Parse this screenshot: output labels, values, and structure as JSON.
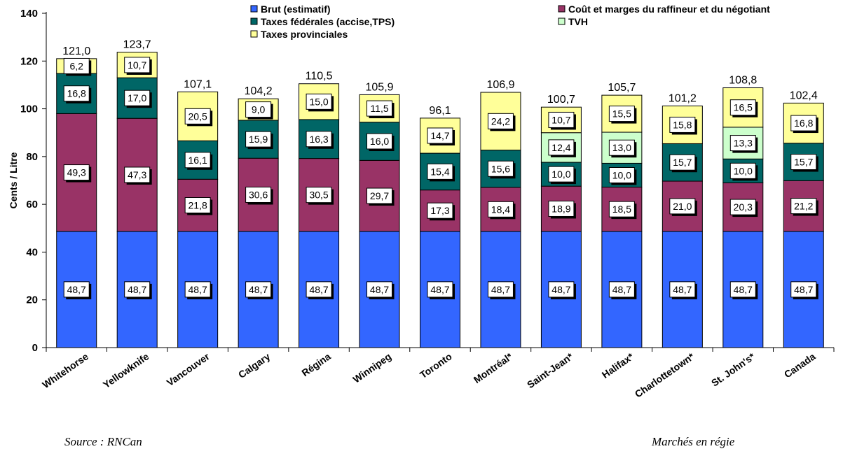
{
  "chart_data": {
    "type": "bar",
    "stacked": true,
    "ylabel": "Cents / Litre",
    "ylim": [
      0,
      140
    ],
    "yticks": [
      0,
      20,
      40,
      60,
      80,
      100,
      120,
      140
    ],
    "grid": false,
    "legend_position": "top",
    "categories": [
      "Whitehorse",
      "Yellowknife",
      "Vancouver",
      "Calgary",
      "Régina",
      "Winnipeg",
      "Toronto",
      "Montréal*",
      "Saint-Jean*",
      "Halifax*",
      "Charlottetown*",
      "St. John's*",
      "Canada"
    ],
    "series": [
      {
        "name": "Brut (estimatif)",
        "color": "#3366ff",
        "values": [
          48.7,
          48.7,
          48.7,
          48.7,
          48.7,
          48.7,
          48.7,
          48.7,
          48.7,
          48.7,
          48.7,
          48.7,
          48.7
        ],
        "labels": [
          "48,7",
          "48,7",
          "48,7",
          "48,7",
          "48,7",
          "48,7",
          "48,7",
          "48,7",
          "48,7",
          "48,7",
          "48,7",
          "48,7",
          "48,7"
        ]
      },
      {
        "name": "Coût et marges du raffineur et du négotiant",
        "color": "#993366",
        "values": [
          49.3,
          47.3,
          21.8,
          30.6,
          30.5,
          29.7,
          17.3,
          18.4,
          18.9,
          18.5,
          21.0,
          20.3,
          21.2
        ],
        "labels": [
          "49,3",
          "47,3",
          "21,8",
          "30,6",
          "30,5",
          "29,7",
          "17,3",
          "18,4",
          "18,9",
          "18,5",
          "21,0",
          "20,3",
          "21,2"
        ]
      },
      {
        "name": "Taxes fédérales (accise,TPS)",
        "color": "#006666",
        "values": [
          16.8,
          17.0,
          16.1,
          15.9,
          16.3,
          16.0,
          15.4,
          15.6,
          10.0,
          10.0,
          15.7,
          10.0,
          15.7
        ],
        "labels": [
          "16,8",
          "17,0",
          "16,1",
          "15,9",
          "16,3",
          "16,0",
          "15,4",
          "15,6",
          "10,0",
          "10,0",
          "15,7",
          "10,0",
          "15,7"
        ]
      },
      {
        "name": "TVH",
        "color": "#ccffcc",
        "values": [
          null,
          null,
          null,
          null,
          null,
          null,
          null,
          null,
          12.4,
          13.0,
          null,
          13.3,
          null
        ],
        "labels": [
          "",
          "",
          "",
          "",
          "",
          "",
          "",
          "",
          "12,4",
          "13,0",
          "",
          "13,3",
          ""
        ]
      },
      {
        "name": "Taxes provinciales",
        "color": "#ffff99",
        "values": [
          6.2,
          10.7,
          20.5,
          9.0,
          15.0,
          11.5,
          14.7,
          24.2,
          10.7,
          15.5,
          15.8,
          16.5,
          16.8
        ],
        "labels": [
          "6,2",
          "10,7",
          "20,5",
          "9,0",
          "15,0",
          "11,5",
          "14,7",
          "24,2",
          "10,7",
          "15,5",
          "15,8",
          "16,5",
          "16,8"
        ]
      }
    ],
    "totals": [
      121.0,
      123.7,
      107.1,
      104.2,
      110.5,
      105.9,
      96.1,
      106.9,
      100.7,
      105.7,
      101.2,
      108.8,
      102.4
    ],
    "total_labels": [
      "121,0",
      "123,7",
      "107,1",
      "104,2",
      "110,5",
      "105,9",
      "96,1",
      "106,9",
      "100,7",
      "105,7",
      "101,2",
      "108,8",
      "102,4"
    ]
  },
  "notes": {
    "source": "Source : RNCan",
    "footnote": "Marchés en régie"
  }
}
